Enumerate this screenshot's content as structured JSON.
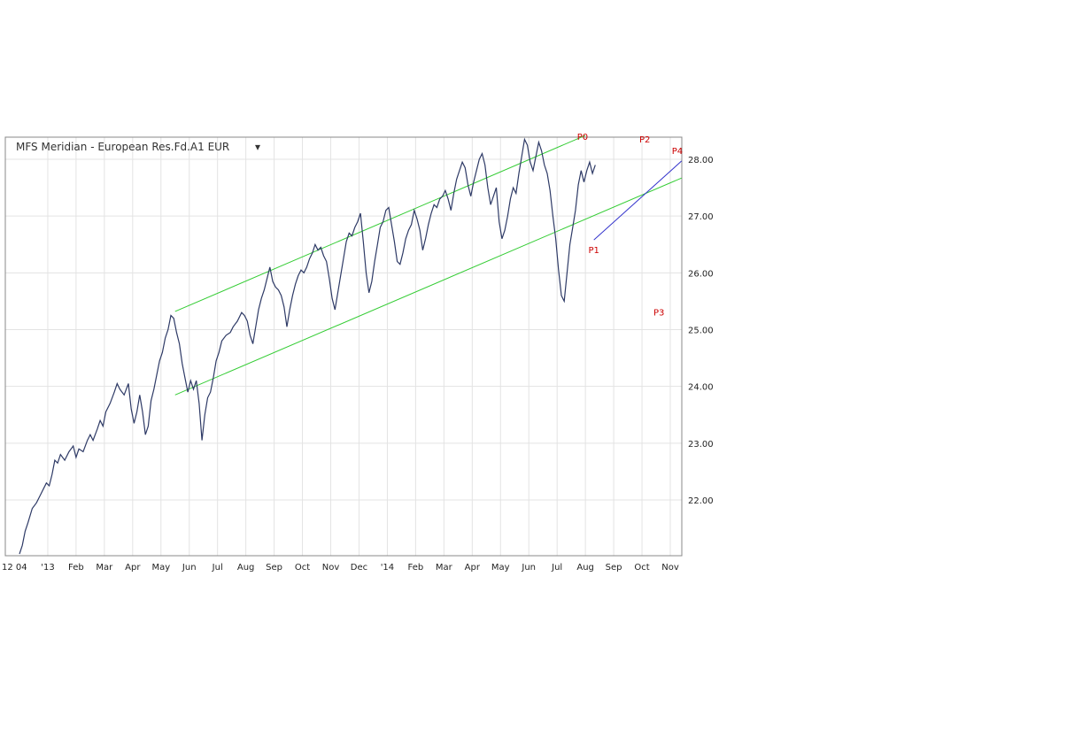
{
  "chart_data": {
    "type": "line",
    "title": "MFS Meridian - European Res.Fd.A1 EUR",
    "title_dropdown": "▾",
    "xlabel": "",
    "ylabel": "",
    "ylim": [
      21.0,
      28.4
    ],
    "y_ticks": [
      22,
      23,
      24,
      25,
      26,
      27,
      28
    ],
    "y_tick_labels": [
      "22.00",
      "23.00",
      "24.00",
      "25.00",
      "26.00",
      "27.00",
      "28.00"
    ],
    "x_ticks": [
      {
        "label": "12 04",
        "t": 0
      },
      {
        "label": "'13",
        "t": 1.0
      },
      {
        "label": "Feb",
        "t": 2.0
      },
      {
        "label": "Mar",
        "t": 3.0
      },
      {
        "label": "Apr",
        "t": 4.0
      },
      {
        "label": "May",
        "t": 5.0
      },
      {
        "label": "Jun",
        "t": 6.0
      },
      {
        "label": "Jul",
        "t": 7.0
      },
      {
        "label": "Aug",
        "t": 8.0
      },
      {
        "label": "Sep",
        "t": 9.0
      },
      {
        "label": "Oct",
        "t": 10.0
      },
      {
        "label": "Nov",
        "t": 11.0
      },
      {
        "label": "Dec",
        "t": 12.0
      },
      {
        "label": "'14",
        "t": 13.0
      },
      {
        "label": "Feb",
        "t": 14.0
      },
      {
        "label": "Mar",
        "t": 15.0
      },
      {
        "label": "Apr",
        "t": 16.0
      },
      {
        "label": "May",
        "t": 17.0
      },
      {
        "label": "Jun",
        "t": 18.0
      },
      {
        "label": "Jul",
        "t": 19.0
      },
      {
        "label": "Aug",
        "t": 20.0
      },
      {
        "label": "Sep",
        "t": 21.0
      },
      {
        "label": "Oct",
        "t": 22.0
      },
      {
        "label": "Nov",
        "t": 23.0
      }
    ],
    "xlim": [
      0,
      23.4
    ],
    "grid": true,
    "series": [
      {
        "color": "#2e3a66",
        "points": [
          [
            0.0,
            21.05
          ],
          [
            0.1,
            21.2
          ],
          [
            0.2,
            21.45
          ],
          [
            0.3,
            21.6
          ],
          [
            0.45,
            21.85
          ],
          [
            0.6,
            21.95
          ],
          [
            0.75,
            22.1
          ],
          [
            0.85,
            22.2
          ],
          [
            0.95,
            22.3
          ],
          [
            1.05,
            22.25
          ],
          [
            1.15,
            22.45
          ],
          [
            1.25,
            22.7
          ],
          [
            1.35,
            22.65
          ],
          [
            1.45,
            22.8
          ],
          [
            1.6,
            22.7
          ],
          [
            1.75,
            22.85
          ],
          [
            1.9,
            22.95
          ],
          [
            2.0,
            22.75
          ],
          [
            2.1,
            22.9
          ],
          [
            2.25,
            22.85
          ],
          [
            2.4,
            23.05
          ],
          [
            2.5,
            23.15
          ],
          [
            2.6,
            23.05
          ],
          [
            2.75,
            23.25
          ],
          [
            2.85,
            23.4
          ],
          [
            2.95,
            23.3
          ],
          [
            3.05,
            23.55
          ],
          [
            3.2,
            23.7
          ],
          [
            3.35,
            23.9
          ],
          [
            3.45,
            24.05
          ],
          [
            3.55,
            23.95
          ],
          [
            3.7,
            23.85
          ],
          [
            3.85,
            24.05
          ],
          [
            3.95,
            23.6
          ],
          [
            4.05,
            23.35
          ],
          [
            4.15,
            23.55
          ],
          [
            4.25,
            23.85
          ],
          [
            4.35,
            23.55
          ],
          [
            4.45,
            23.15
          ],
          [
            4.55,
            23.3
          ],
          [
            4.65,
            23.75
          ],
          [
            4.75,
            23.95
          ],
          [
            4.85,
            24.2
          ],
          [
            4.95,
            24.45
          ],
          [
            5.05,
            24.6
          ],
          [
            5.15,
            24.85
          ],
          [
            5.25,
            25.0
          ],
          [
            5.35,
            25.25
          ],
          [
            5.45,
            25.2
          ],
          [
            5.55,
            24.95
          ],
          [
            5.65,
            24.75
          ],
          [
            5.75,
            24.4
          ],
          [
            5.85,
            24.15
          ],
          [
            5.95,
            23.9
          ],
          [
            6.05,
            24.1
          ],
          [
            6.15,
            23.95
          ],
          [
            6.25,
            24.1
          ],
          [
            6.35,
            23.7
          ],
          [
            6.45,
            23.05
          ],
          [
            6.55,
            23.5
          ],
          [
            6.65,
            23.8
          ],
          [
            6.75,
            23.9
          ],
          [
            6.85,
            24.15
          ],
          [
            6.95,
            24.45
          ],
          [
            7.05,
            24.6
          ],
          [
            7.15,
            24.8
          ],
          [
            7.3,
            24.9
          ],
          [
            7.45,
            24.95
          ],
          [
            7.55,
            25.05
          ],
          [
            7.7,
            25.15
          ],
          [
            7.85,
            25.3
          ],
          [
            7.95,
            25.25
          ],
          [
            8.05,
            25.15
          ],
          [
            8.15,
            24.9
          ],
          [
            8.25,
            24.75
          ],
          [
            8.35,
            25.05
          ],
          [
            8.45,
            25.35
          ],
          [
            8.55,
            25.55
          ],
          [
            8.65,
            25.7
          ],
          [
            8.75,
            25.9
          ],
          [
            8.85,
            26.1
          ],
          [
            8.95,
            25.85
          ],
          [
            9.05,
            25.75
          ],
          [
            9.15,
            25.7
          ],
          [
            9.25,
            25.6
          ],
          [
            9.35,
            25.4
          ],
          [
            9.45,
            25.05
          ],
          [
            9.55,
            25.35
          ],
          [
            9.65,
            25.6
          ],
          [
            9.75,
            25.8
          ],
          [
            9.85,
            25.95
          ],
          [
            9.95,
            26.05
          ],
          [
            10.05,
            26.0
          ],
          [
            10.15,
            26.1
          ],
          [
            10.25,
            26.25
          ],
          [
            10.35,
            26.35
          ],
          [
            10.45,
            26.5
          ],
          [
            10.55,
            26.4
          ],
          [
            10.65,
            26.45
          ],
          [
            10.75,
            26.3
          ],
          [
            10.85,
            26.2
          ],
          [
            10.95,
            25.9
          ],
          [
            11.05,
            25.55
          ],
          [
            11.15,
            25.35
          ],
          [
            11.25,
            25.65
          ],
          [
            11.35,
            25.95
          ],
          [
            11.45,
            26.25
          ],
          [
            11.55,
            26.55
          ],
          [
            11.65,
            26.7
          ],
          [
            11.75,
            26.65
          ],
          [
            11.85,
            26.8
          ],
          [
            11.95,
            26.9
          ],
          [
            12.05,
            27.05
          ],
          [
            12.15,
            26.55
          ],
          [
            12.25,
            26.0
          ],
          [
            12.35,
            25.65
          ],
          [
            12.45,
            25.85
          ],
          [
            12.55,
            26.2
          ],
          [
            12.65,
            26.5
          ],
          [
            12.75,
            26.8
          ],
          [
            12.85,
            26.9
          ],
          [
            12.95,
            27.1
          ],
          [
            13.05,
            27.15
          ],
          [
            13.15,
            26.85
          ],
          [
            13.25,
            26.55
          ],
          [
            13.35,
            26.2
          ],
          [
            13.45,
            26.15
          ],
          [
            13.55,
            26.35
          ],
          [
            13.65,
            26.6
          ],
          [
            13.75,
            26.75
          ],
          [
            13.85,
            26.85
          ],
          [
            13.95,
            27.1
          ],
          [
            14.05,
            26.95
          ],
          [
            14.15,
            26.75
          ],
          [
            14.25,
            26.4
          ],
          [
            14.35,
            26.6
          ],
          [
            14.45,
            26.85
          ],
          [
            14.55,
            27.05
          ],
          [
            14.65,
            27.2
          ],
          [
            14.75,
            27.15
          ],
          [
            14.85,
            27.3
          ],
          [
            14.95,
            27.35
          ],
          [
            15.05,
            27.45
          ],
          [
            15.15,
            27.3
          ],
          [
            15.25,
            27.1
          ],
          [
            15.35,
            27.4
          ],
          [
            15.45,
            27.65
          ],
          [
            15.55,
            27.8
          ],
          [
            15.65,
            27.95
          ],
          [
            15.75,
            27.85
          ],
          [
            15.85,
            27.55
          ],
          [
            15.95,
            27.35
          ],
          [
            16.05,
            27.6
          ],
          [
            16.15,
            27.8
          ],
          [
            16.25,
            28.0
          ],
          [
            16.35,
            28.1
          ],
          [
            16.45,
            27.9
          ],
          [
            16.55,
            27.5
          ],
          [
            16.65,
            27.2
          ],
          [
            16.75,
            27.35
          ],
          [
            16.85,
            27.5
          ],
          [
            16.95,
            26.9
          ],
          [
            17.05,
            26.6
          ],
          [
            17.15,
            26.75
          ],
          [
            17.25,
            27.0
          ],
          [
            17.35,
            27.3
          ],
          [
            17.45,
            27.5
          ],
          [
            17.55,
            27.4
          ],
          [
            17.65,
            27.75
          ],
          [
            17.75,
            28.05
          ],
          [
            17.85,
            28.35
          ],
          [
            17.95,
            28.25
          ],
          [
            18.05,
            27.95
          ],
          [
            18.15,
            27.8
          ],
          [
            18.25,
            28.05
          ],
          [
            18.35,
            28.3
          ],
          [
            18.45,
            28.15
          ],
          [
            18.55,
            27.9
          ],
          [
            18.65,
            27.75
          ],
          [
            18.75,
            27.45
          ],
          [
            18.85,
            27.0
          ],
          [
            18.95,
            26.6
          ],
          [
            19.05,
            26.05
          ],
          [
            19.15,
            25.6
          ],
          [
            19.25,
            25.5
          ],
          [
            19.35,
            26.0
          ],
          [
            19.45,
            26.5
          ],
          [
            19.55,
            26.8
          ],
          [
            19.65,
            27.1
          ],
          [
            19.75,
            27.55
          ],
          [
            19.85,
            27.8
          ],
          [
            19.95,
            27.6
          ],
          [
            20.05,
            27.8
          ],
          [
            20.15,
            27.95
          ],
          [
            20.25,
            27.75
          ],
          [
            20.35,
            27.9
          ]
        ]
      }
    ],
    "annotations": {
      "channel_upper": {
        "color": "#33cc33",
        "from": [
          5.5,
          25.32
        ],
        "to": [
          20.0,
          28.42
        ]
      },
      "channel_lower": {
        "color": "#33cc33",
        "from": [
          5.5,
          23.85
        ],
        "to": [
          23.4,
          27.67
        ]
      },
      "trendline": {
        "color": "#3333cc",
        "from": [
          20.3,
          26.58
        ],
        "to": [
          23.4,
          27.97
        ]
      },
      "points": [
        {
          "label": "P0",
          "t": 19.9,
          "v": 28.25,
          "pos": "above"
        },
        {
          "label": "P1",
          "t": 20.3,
          "v": 26.58,
          "pos": "below"
        },
        {
          "label": "P2",
          "t": 22.1,
          "v": 28.2,
          "pos": "above"
        },
        {
          "label": "P3",
          "t": 22.6,
          "v": 25.48,
          "pos": "below"
        },
        {
          "label": "P4",
          "t": 23.25,
          "v": 28.0,
          "pos": "above"
        }
      ]
    }
  }
}
